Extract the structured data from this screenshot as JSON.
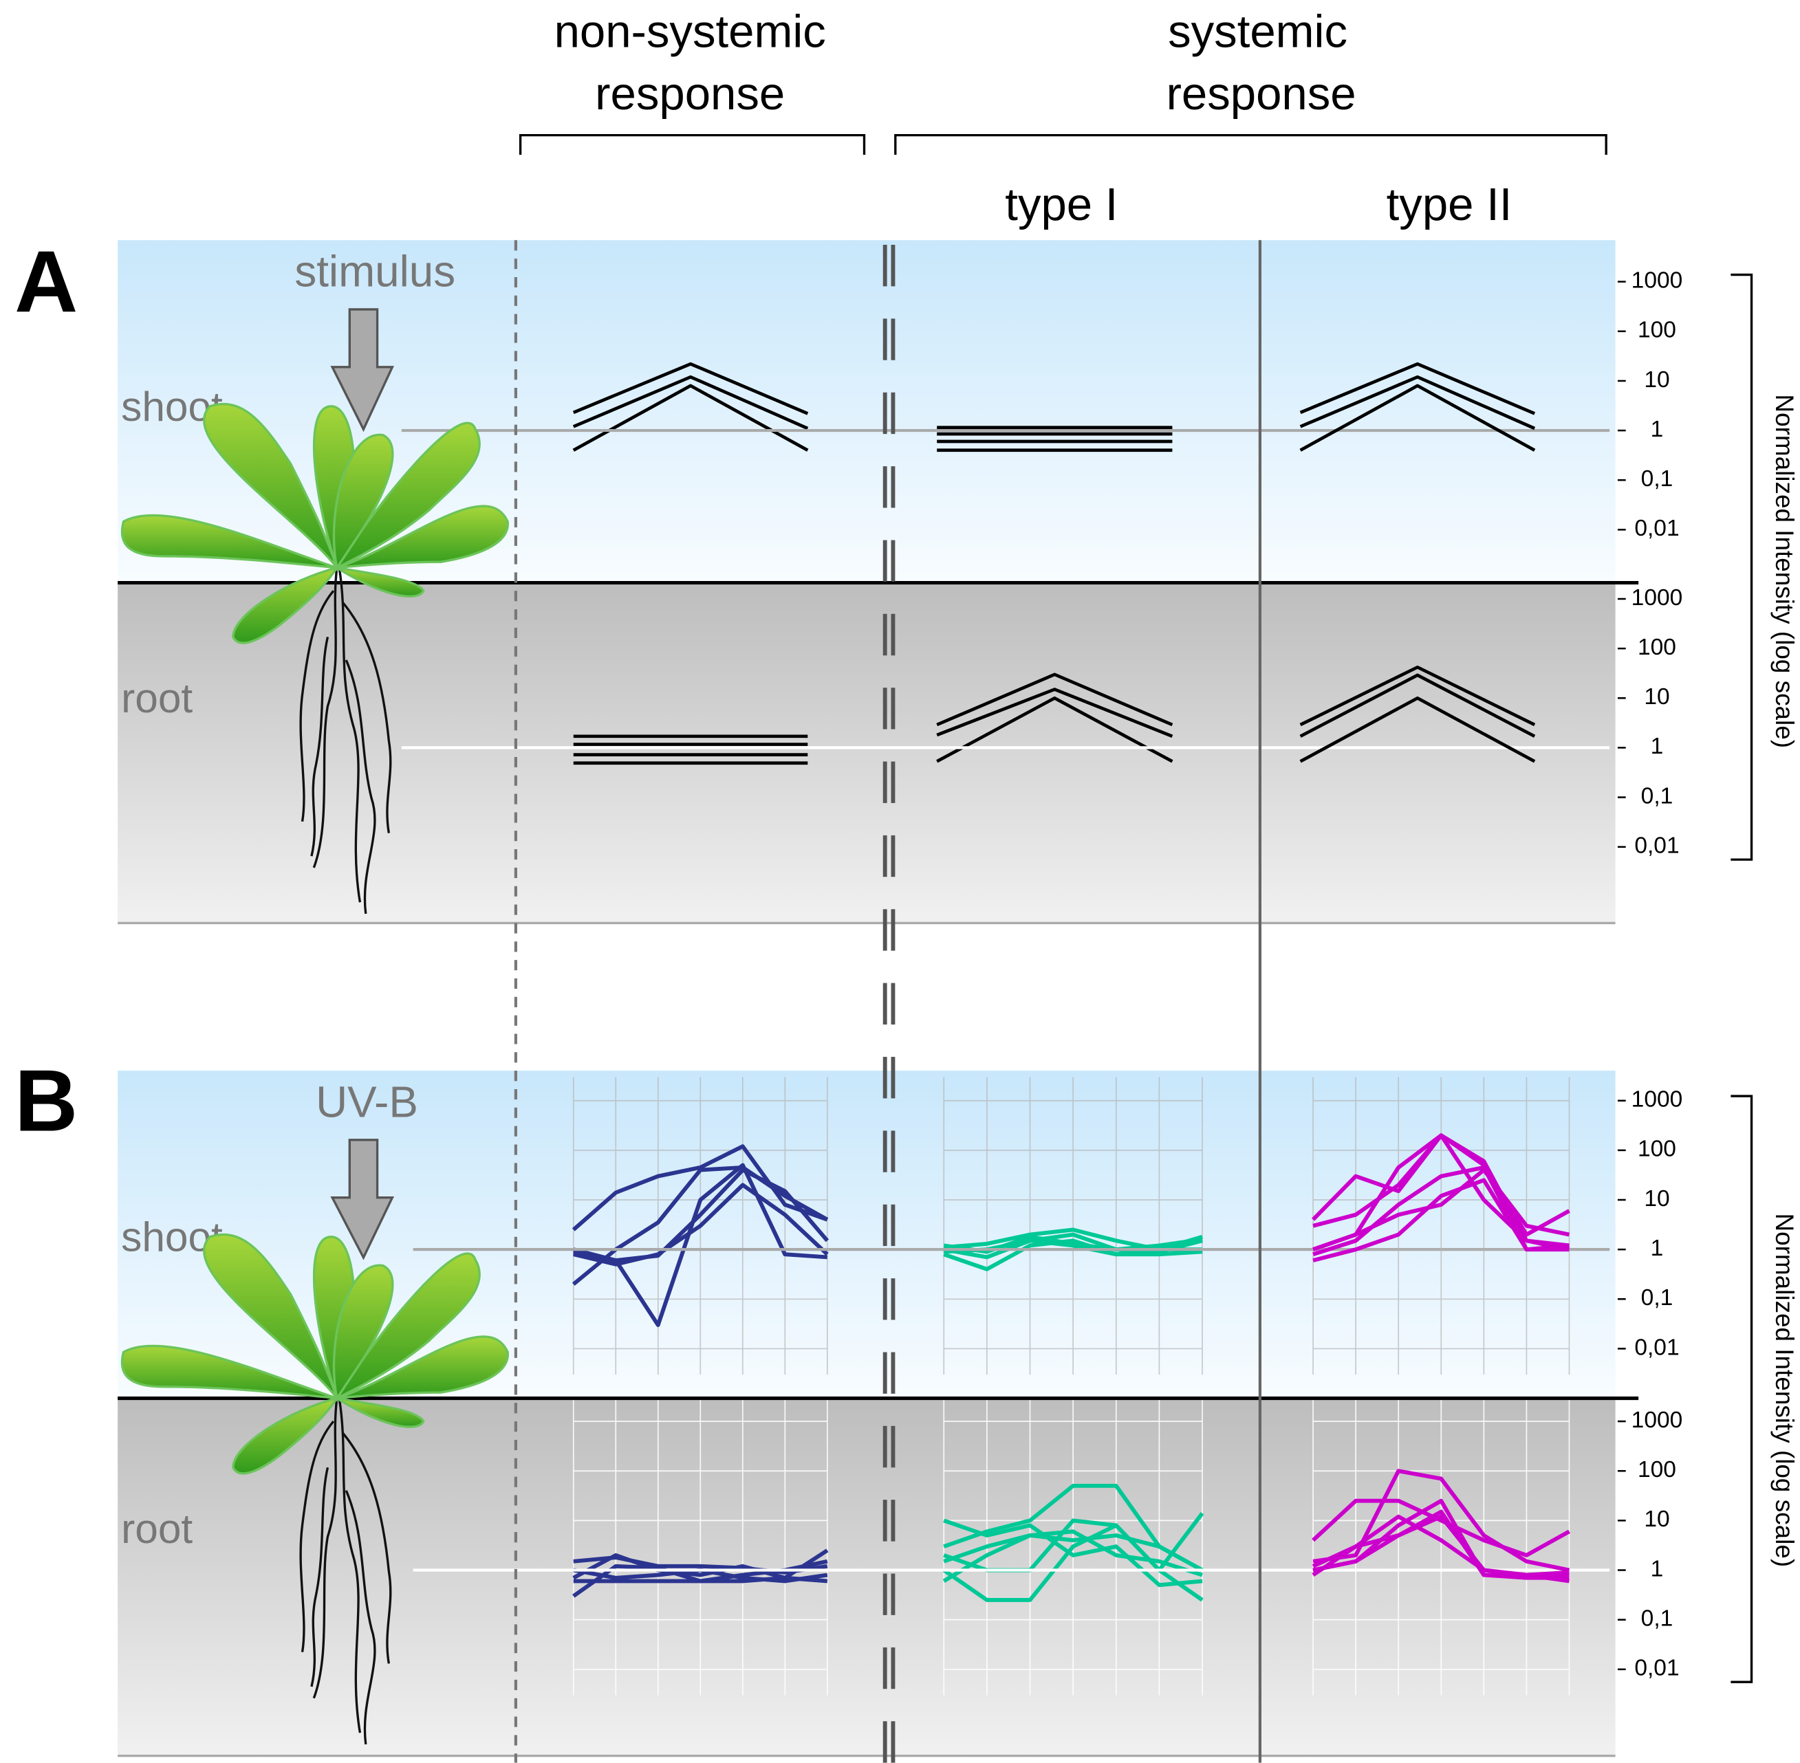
{
  "header": {
    "nonsystemic": [
      "non-systemic",
      "response"
    ],
    "systemic": [
      "systemic",
      "response"
    ],
    "types": [
      "type I",
      "type II"
    ]
  },
  "panels": [
    {
      "label": "A",
      "stimulus": "stimulus",
      "shoot": "shoot",
      "root": "root",
      "axis_title": "Normalized Intensity (log scale)"
    },
    {
      "label": "B",
      "stimulus": "UV-B",
      "shoot": "shoot",
      "root": "root",
      "axis_title": "Normalized Intensity (log scale)"
    }
  ],
  "chart_data": [
    {
      "type": "line",
      "log_scale": true,
      "ylim": [
        0.003,
        3000
      ],
      "xlim": [
        1,
        3
      ],
      "x": [
        1,
        2,
        3
      ],
      "series": [
        {
          "color": "#000000",
          "values": [
            2.3,
            22,
            2.2
          ]
        },
        {
          "color": "#000000",
          "values": [
            1.2,
            12,
            1.1
          ]
        },
        {
          "color": "#000000",
          "values": [
            0.4,
            8,
            0.4
          ]
        }
      ]
    },
    {
      "type": "line",
      "log_scale": true,
      "ylim": [
        0.003,
        3000
      ],
      "xlim": [
        1,
        3
      ],
      "x": [
        1,
        2,
        3
      ],
      "series": [
        {
          "color": "#000000",
          "values": [
            1.15,
            1.15,
            1.15
          ]
        },
        {
          "color": "#000000",
          "values": [
            0.85,
            0.85,
            0.85
          ]
        },
        {
          "color": "#000000",
          "values": [
            0.6,
            0.6,
            0.6
          ]
        },
        {
          "color": "#000000",
          "values": [
            0.4,
            0.4,
            0.4
          ]
        }
      ]
    },
    {
      "type": "line",
      "log_scale": true,
      "ylim": [
        0.003,
        3000
      ],
      "xlim": [
        1,
        3
      ],
      "x": [
        1,
        2,
        3
      ],
      "series": [
        {
          "color": "#000000",
          "values": [
            2.3,
            22,
            2.2
          ]
        },
        {
          "color": "#000000",
          "values": [
            1.2,
            12,
            1.1
          ]
        },
        {
          "color": "#000000",
          "values": [
            0.4,
            8,
            0.4
          ]
        }
      ],
      "yticks": [
        1000,
        100,
        10,
        1,
        {
          "value": 0.1,
          "label": "0,1"
        },
        {
          "value": 0.01,
          "label": "0,01"
        }
      ],
      "reference_line": 1
    },
    {
      "type": "line",
      "log_scale": true,
      "ylim": [
        0.003,
        3000
      ],
      "xlim": [
        1,
        3
      ],
      "x": [
        1,
        2,
        3
      ],
      "series": [
        {
          "color": "#000000",
          "values": [
            1.7,
            1.7,
            1.7
          ]
        },
        {
          "color": "#000000",
          "values": [
            1.17,
            1.17,
            1.17
          ]
        },
        {
          "color": "#000000",
          "values": [
            0.72,
            0.72,
            0.72
          ]
        },
        {
          "color": "#000000",
          "values": [
            0.49,
            0.49,
            0.49
          ]
        }
      ]
    },
    {
      "type": "line",
      "log_scale": true,
      "ylim": [
        0.003,
        3000
      ],
      "xlim": [
        1,
        3
      ],
      "x": [
        1,
        2,
        3
      ],
      "series": [
        {
          "color": "#000000",
          "values": [
            2.9,
            30,
            2.9
          ]
        },
        {
          "color": "#000000",
          "values": [
            1.8,
            15,
            1.7
          ]
        },
        {
          "color": "#000000",
          "values": [
            0.53,
            10,
            0.53
          ]
        }
      ]
    },
    {
      "type": "line",
      "log_scale": true,
      "ylim": [
        0.003,
        3000
      ],
      "xlim": [
        1,
        3
      ],
      "x": [
        1,
        2,
        3
      ],
      "series": [
        {
          "color": "#000000",
          "values": [
            2.9,
            42,
            2.9
          ]
        },
        {
          "color": "#000000",
          "values": [
            1.7,
            29,
            1.7
          ]
        },
        {
          "color": "#000000",
          "values": [
            0.53,
            10,
            0.53
          ]
        }
      ],
      "yticks": [
        1000,
        100,
        10,
        1,
        {
          "value": 0.1,
          "label": "0,1"
        },
        {
          "value": 0.01,
          "label": "0,01"
        }
      ],
      "reference_line": 1
    },
    {
      "type": "line",
      "log_scale": true,
      "grid": true,
      "ylim": [
        0.003,
        3000
      ],
      "xlim": [
        1,
        7
      ],
      "x": [
        1,
        2,
        3,
        4,
        5,
        6,
        7
      ],
      "series": [
        {
          "color": "#2b3590",
          "values": [
            2.5,
            14,
            30,
            45,
            120,
            8,
            4
          ]
        },
        {
          "color": "#2b3590",
          "values": [
            1,
            0.6,
            0.75,
            5,
            40,
            15,
            1.5
          ]
        },
        {
          "color": "#2b3590",
          "values": [
            0.9,
            0.6,
            0.03,
            10,
            50,
            0.8,
            0.7
          ]
        },
        {
          "color": "#2b3590",
          "values": [
            0.2,
            1,
            3.5,
            40,
            45,
            12,
            4
          ]
        },
        {
          "color": "#2b3590",
          "values": [
            0.8,
            0.5,
            0.8,
            3,
            20,
            5,
            0.8
          ]
        }
      ]
    },
    {
      "type": "line",
      "log_scale": true,
      "grid": true,
      "ylim": [
        0.003,
        3000
      ],
      "xlim": [
        1,
        7
      ],
      "x": [
        1,
        2,
        3,
        4,
        5,
        6,
        7
      ],
      "series": [
        {
          "color": "#00c896",
          "values": [
            1,
            0.7,
            1.5,
            2,
            1,
            0.9,
            1.5
          ]
        },
        {
          "color": "#00c896",
          "values": [
            0.8,
            0.4,
            1.2,
            1.5,
            0.8,
            1,
            1.8
          ]
        },
        {
          "color": "#00c896",
          "values": [
            1.1,
            1.3,
            2,
            2.5,
            1.5,
            1,
            1
          ]
        },
        {
          "color": "#00c896",
          "values": [
            0.9,
            1,
            1.5,
            1.2,
            0.8,
            0.8,
            0.9
          ]
        },
        {
          "color": "#00c896",
          "values": [
            1.2,
            0.9,
            1.8,
            1.3,
            1,
            1.2,
            1.6
          ]
        }
      ]
    },
    {
      "type": "line",
      "log_scale": true,
      "grid": true,
      "ylim": [
        0.003,
        3000
      ],
      "xlim": [
        1,
        7
      ],
      "x": [
        1,
        2,
        3,
        4,
        5,
        6,
        7
      ],
      "series": [
        {
          "color": "#cc00cc",
          "values": [
            4,
            30,
            15,
            200,
            50,
            2,
            6
          ]
        },
        {
          "color": "#cc00cc",
          "values": [
            1,
            2,
            45,
            200,
            60,
            1.5,
            1
          ]
        },
        {
          "color": "#cc00cc",
          "values": [
            0.8,
            1.5,
            8,
            30,
            45,
            1,
            1.2
          ]
        },
        {
          "color": "#cc00cc",
          "values": [
            0.6,
            1,
            2,
            12,
            25,
            1,
            1
          ]
        },
        {
          "color": "#cc00cc",
          "values": [
            1,
            2,
            5,
            8,
            40,
            3,
            2
          ]
        },
        {
          "color": "#cc00cc",
          "values": [
            3,
            5,
            20,
            200,
            10,
            1.5,
            1.2
          ]
        }
      ],
      "yticks": [
        1000,
        100,
        10,
        1,
        {
          "value": 0.1,
          "label": "0,1"
        },
        {
          "value": 0.01,
          "label": "0,01"
        }
      ],
      "reference_line": 1
    },
    {
      "type": "line",
      "log_scale": true,
      "grid": true,
      "ylim": [
        0.003,
        3000
      ],
      "xlim": [
        1,
        7
      ],
      "x": [
        1,
        2,
        3,
        4,
        5,
        6,
        7
      ],
      "series": [
        {
          "color": "#2b3590",
          "values": [
            1.5,
            1.8,
            1.2,
            1.2,
            1.1,
            0.9,
            1.2
          ]
        },
        {
          "color": "#2b3590",
          "values": [
            0.7,
            2,
            1,
            0.8,
            1.2,
            0.7,
            2.5
          ]
        },
        {
          "color": "#2b3590",
          "values": [
            0.3,
            1.2,
            1.1,
            0.6,
            0.8,
            1,
            1.5
          ]
        },
        {
          "color": "#2b3590",
          "values": [
            0.6,
            0.6,
            0.6,
            0.6,
            0.6,
            0.7,
            0.6
          ]
        },
        {
          "color": "#2b3590",
          "values": [
            1,
            0.7,
            0.8,
            1,
            0.7,
            0.6,
            0.8
          ]
        }
      ]
    },
    {
      "type": "line",
      "log_scale": true,
      "grid": true,
      "ylim": [
        0.003,
        3000
      ],
      "xlim": [
        1,
        7
      ],
      "x": [
        1,
        2,
        3,
        4,
        5,
        6,
        7
      ],
      "series": [
        {
          "color": "#00c896",
          "values": [
            3,
            6,
            10,
            50,
            50,
            3,
            1
          ]
        },
        {
          "color": "#00c896",
          "values": [
            2,
            1,
            1,
            10,
            8,
            1,
            14
          ]
        },
        {
          "color": "#00c896",
          "values": [
            1,
            0.25,
            0.25,
            3,
            8,
            1,
            0.25
          ]
        },
        {
          "color": "#00c896",
          "values": [
            0.6,
            2,
            5,
            6,
            2,
            1.5,
            0.8
          ]
        },
        {
          "color": "#00c896",
          "values": [
            10,
            5,
            8,
            2,
            3,
            0.5,
            0.6
          ]
        },
        {
          "color": "#00c896",
          "values": [
            1.5,
            3,
            5,
            4,
            5,
            3,
            1
          ]
        }
      ]
    },
    {
      "type": "line",
      "log_scale": true,
      "grid": true,
      "ylim": [
        0.003,
        3000
      ],
      "xlim": [
        1,
        7
      ],
      "x": [
        1,
        2,
        3,
        4,
        5,
        6,
        7
      ],
      "series": [
        {
          "color": "#cc00cc",
          "values": [
            4,
            25,
            25,
            10,
            4,
            2,
            6
          ]
        },
        {
          "color": "#cc00cc",
          "values": [
            1.5,
            2,
            100,
            70,
            5,
            1.5,
            1
          ]
        },
        {
          "color": "#cc00cc",
          "values": [
            1,
            1.5,
            8,
            25,
            0.8,
            0.8,
            0.9
          ]
        },
        {
          "color": "#cc00cc",
          "values": [
            0.8,
            3,
            5,
            15,
            0.8,
            0.7,
            0.7
          ]
        },
        {
          "color": "#cc00cc",
          "values": [
            1.2,
            3,
            12,
            4,
            1,
            0.8,
            0.8
          ]
        },
        {
          "color": "#cc00cc",
          "values": [
            1,
            1.5,
            5,
            12,
            1,
            0.8,
            0.6
          ]
        }
      ],
      "yticks": [
        1000,
        100,
        10,
        1,
        {
          "value": 0.1,
          "label": "0,1"
        },
        {
          "value": 0.01,
          "label": "0,01"
        }
      ],
      "reference_line": 1
    }
  ]
}
